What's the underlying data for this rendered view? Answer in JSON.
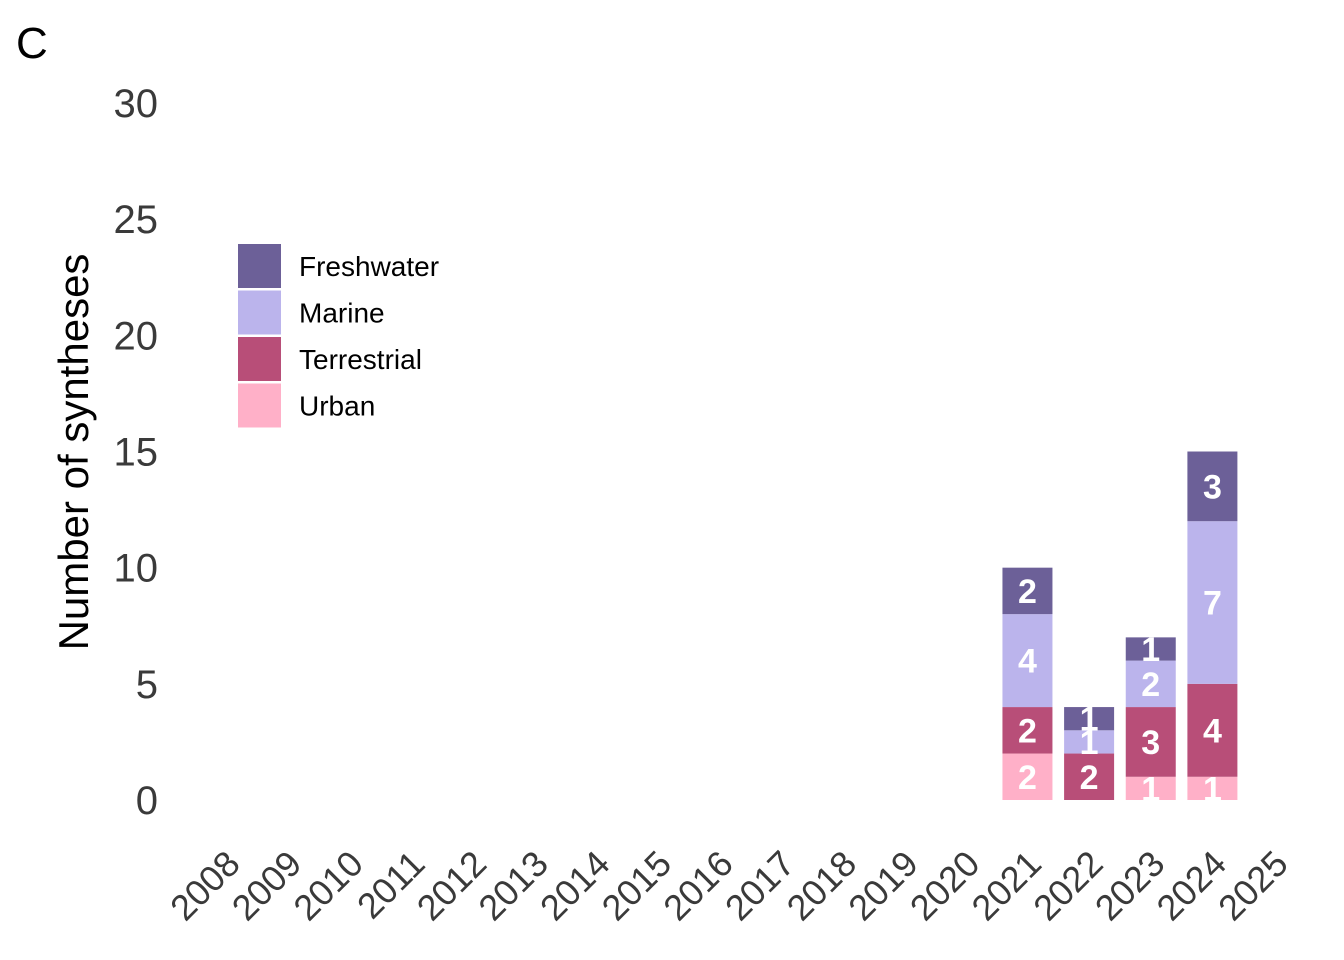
{
  "panel_label": "C",
  "chart_data": {
    "type": "bar",
    "stacked": true,
    "ylabel": "Number of syntheses",
    "xlabel": "",
    "ylim": [
      0,
      30
    ],
    "yticks": [
      0,
      5,
      10,
      15,
      20,
      25,
      30
    ],
    "grid": false,
    "legend_position": "top-left",
    "categories": [
      "2008",
      "2009",
      "2010",
      "2011",
      "2012",
      "2013",
      "2014",
      "2015",
      "2016",
      "2017",
      "2018",
      "2019",
      "2020",
      "2021",
      "2022",
      "2023",
      "2024",
      "2025"
    ],
    "series": [
      {
        "name": "Urban",
        "color": "#ffb0c8",
        "values": [
          0,
          0,
          0,
          0,
          0,
          0,
          0,
          0,
          0,
          0,
          0,
          0,
          0,
          2,
          0,
          1,
          1,
          0
        ]
      },
      {
        "name": "Terrestrial",
        "color": "#b84e78",
        "values": [
          0,
          0,
          0,
          0,
          0,
          0,
          0,
          0,
          0,
          0,
          0,
          0,
          0,
          2,
          2,
          3,
          4,
          0
        ]
      },
      {
        "name": "Marine",
        "color": "#bbb4ec",
        "values": [
          0,
          0,
          0,
          0,
          0,
          0,
          0,
          0,
          0,
          0,
          0,
          0,
          0,
          4,
          1,
          2,
          7,
          0
        ]
      },
      {
        "name": "Freshwater",
        "color": "#6c6098",
        "values": [
          0,
          0,
          0,
          0,
          0,
          0,
          0,
          0,
          0,
          0,
          0,
          0,
          0,
          2,
          1,
          1,
          3,
          0
        ]
      }
    ],
    "legend_order": [
      "Freshwater",
      "Marine",
      "Terrestrial",
      "Urban"
    ]
  }
}
